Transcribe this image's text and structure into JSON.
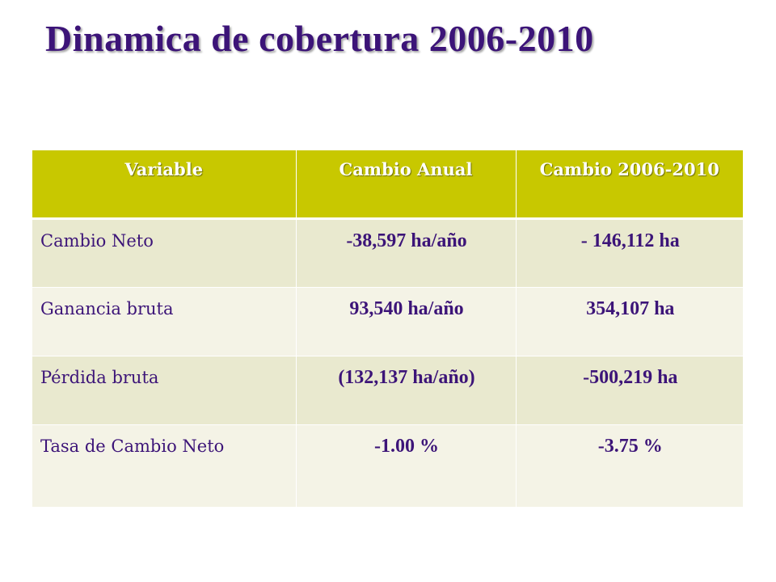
{
  "title": "Dinamica de cobertura 2006-2010",
  "colors": {
    "title": "#3c1478",
    "header_bg": "#c8c800",
    "header_text": "#ffffff",
    "row_dark": "#e9e9cf",
    "row_light": "#f4f3e6",
    "cell_text": "#3c1478"
  },
  "table": {
    "headers": [
      "Variable",
      "Cambio Anual",
      "Cambio 2006-2010"
    ],
    "rows": [
      [
        "Cambio Neto",
        "-38,597 ha/año",
        "- 146,112 ha"
      ],
      [
        "Ganancia bruta",
        "93,540 ha/año",
        "354,107 ha"
      ],
      [
        "Pérdida bruta",
        "(132,137 ha/año)",
        "-500,219 ha"
      ],
      [
        "Tasa de Cambio Neto",
        "-1.00 %",
        "-3.75 %"
      ]
    ]
  }
}
